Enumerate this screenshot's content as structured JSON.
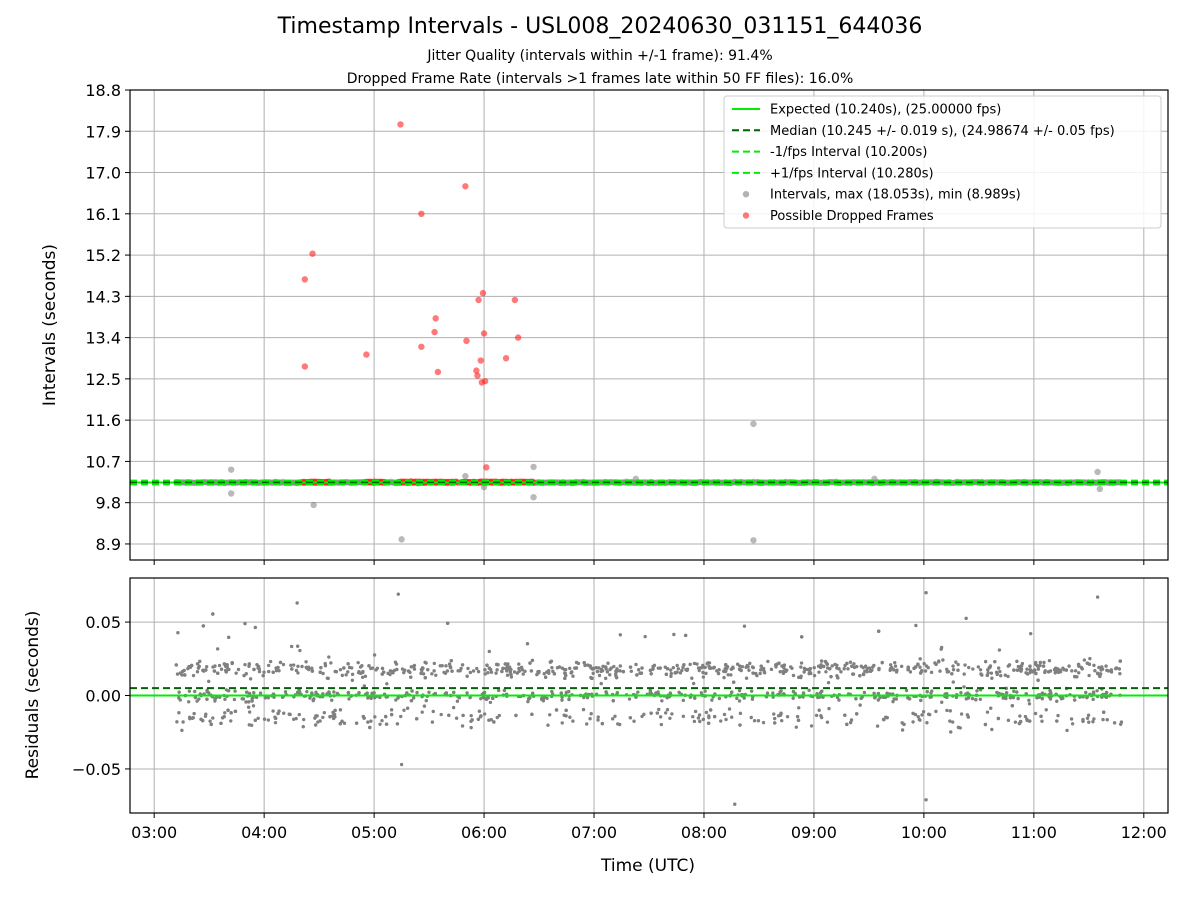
{
  "header": {
    "title": "Timestamp Intervals - USL008_20240630_031151_644036",
    "subtitle_1": "Jitter Quality (intervals within +/-1 frame): 91.4%",
    "subtitle_2": "Dropped Frame Rate (intervals >1 frames late within 50 FF files): 16.0%"
  },
  "colors": {
    "expected": "#00ee00",
    "median": "#006400",
    "fps_interval": "#00ee00",
    "intervals": "#808080",
    "dropped": "#ff2020",
    "grid": "#b0b0b0"
  },
  "chart_data": [
    {
      "type": "scatter",
      "name": "intervals",
      "xlabel": "",
      "ylabel": "Intervals (seconds)",
      "x_unit": "hours UTC",
      "xlim": [
        2.78,
        12.22
      ],
      "ylim": [
        8.55,
        18.8
      ],
      "x_ticks": [
        3,
        4,
        5,
        6,
        7,
        8,
        9,
        10,
        11,
        12
      ],
      "y_ticks": [
        8.9,
        9.8,
        10.7,
        11.6,
        12.5,
        13.4,
        14.3,
        15.2,
        16.1,
        17.0,
        17.9,
        18.8
      ],
      "y_tick_labels": [
        "8.9",
        "9.8",
        "10.7",
        "11.6",
        "12.5",
        "13.4",
        "14.3",
        "15.2",
        "16.1",
        "17.0",
        "17.9",
        "18.8"
      ],
      "grid": true,
      "legend_position": "top-right",
      "legend": [
        "Expected (10.240s), (25.00000 fps)",
        "Median (10.245 +/- 0.019 s), (24.98674 +/- 0.05 fps)",
        "-1/fps Interval (10.200s)",
        "+1/fps Interval (10.280s)",
        "Intervals, max (18.053s), min (8.989s)",
        "Possible Dropped Frames"
      ],
      "reference_lines": {
        "expected": 10.24,
        "median": 10.245,
        "minus_1_fps": 10.2,
        "plus_1_fps": 10.28
      },
      "series": [
        {
          "name": "Intervals, max (18.053s), min (8.989s)",
          "band": {
            "x_start": 3.2,
            "x_end": 11.8,
            "y": 10.24,
            "spread": 0.025
          },
          "x": [
            3.7,
            3.7,
            4.45,
            5.25,
            5.83,
            6.0,
            6.45,
            6.45,
            7.38,
            8.45,
            8.45,
            9.55,
            11.58,
            11.6
          ],
          "y": [
            10.52,
            10.0,
            9.75,
            9.0,
            10.38,
            10.14,
            10.58,
            9.92,
            10.32,
            11.52,
            8.98,
            10.32,
            10.47,
            10.1
          ]
        },
        {
          "name": "Possible Dropped Frames",
          "bands": [
            {
              "x_start": 4.35,
              "x_end": 4.6,
              "y": 10.25
            },
            {
              "x_start": 4.92,
              "x_end": 5.1,
              "y": 10.25
            },
            {
              "x_start": 5.22,
              "x_end": 5.75,
              "y": 10.25
            },
            {
              "x_start": 5.8,
              "x_end": 6.45,
              "y": 10.25
            }
          ],
          "x": [
            4.37,
            4.37,
            4.44,
            4.93,
            5.24,
            5.43,
            5.43,
            5.55,
            5.56,
            5.58,
            5.83,
            5.84,
            5.93,
            5.94,
            5.95,
            5.97,
            5.98,
            5.99,
            6.0,
            6.01,
            6.02,
            6.2,
            6.28,
            6.31
          ],
          "y": [
            12.77,
            14.67,
            15.23,
            13.03,
            18.05,
            16.1,
            13.2,
            13.52,
            13.82,
            12.65,
            16.7,
            13.33,
            12.68,
            12.57,
            14.22,
            12.9,
            12.42,
            14.37,
            13.49,
            12.45,
            10.57,
            12.95,
            14.22,
            13.4
          ]
        }
      ]
    },
    {
      "type": "scatter",
      "name": "residuals",
      "xlabel": "Time (UTC)",
      "ylabel": "Residuals (seconds)",
      "x_unit": "hours UTC",
      "xlim": [
        2.78,
        12.22
      ],
      "ylim": [
        -0.08,
        0.08
      ],
      "x_ticks": [
        3,
        4,
        5,
        6,
        7,
        8,
        9,
        10,
        11,
        12
      ],
      "x_tick_labels": [
        "03:00",
        "04:00",
        "05:00",
        "06:00",
        "07:00",
        "08:00",
        "09:00",
        "10:00",
        "11:00",
        "12:00"
      ],
      "y_ticks": [
        -0.05,
        0.0,
        0.05
      ],
      "y_tick_labels": [
        "−0.05",
        "0.00",
        "0.05"
      ],
      "grid": true,
      "reference_lines": {
        "expected": 0.0,
        "median": 0.005
      },
      "series": [
        {
          "name": "residuals",
          "x_start": 3.2,
          "x_end": 11.8,
          "count": 1700,
          "typical_range": [
            -0.03,
            0.05
          ],
          "outliers_x": [
            5.22,
            8.28,
            10.02,
            5.25,
            10.02,
            11.58,
            4.3
          ],
          "outliers_y": [
            0.069,
            -0.074,
            -0.071,
            -0.047,
            0.07,
            0.067,
            0.063
          ]
        }
      ]
    }
  ]
}
